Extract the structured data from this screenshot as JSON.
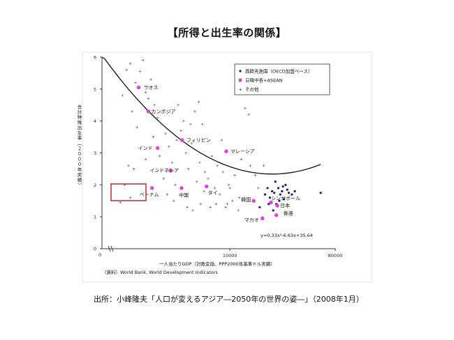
{
  "page": {
    "title": "【所得と出生率の関係】",
    "source": "出所：小峰隆夫「人口が変えるアジア―2050年の世界の姿―」（2008年1月）"
  },
  "chart_data": {
    "type": "scatter",
    "ylabel": "合計特殊出生率（２０００年実績）",
    "xlabel": "一人当たりGDP（対数変換、PPP2000年基準ドル実績）",
    "note": "（資料）World Bank, World Development Indicators",
    "x_scale": "log",
    "x_ticks": [
      {
        "value": 10000,
        "label": "10000"
      },
      {
        "value": 80000,
        "label": "80000"
      }
    ],
    "x_origin_label": "0",
    "y_ticks": [
      0,
      1,
      2,
      3,
      4,
      5,
      6
    ],
    "ylim": [
      0,
      6
    ],
    "xlim": [
      800,
      80000
    ],
    "grid": false,
    "legend_position": "top-right",
    "legend": [
      {
        "label": "西欧先進国（OECD加盟ベース）",
        "marker": "dot",
        "color": "#1a1a6e"
      },
      {
        "label": "日韓中香+ASEAN",
        "marker": "magenta",
        "color": "#e040e0"
      },
      {
        "label": "その他",
        "marker": "plus",
        "color": "#777777"
      }
    ],
    "equation": "y=0.33x²-6.63x+35.64",
    "trend": {
      "a": 0.33,
      "b": -6.63,
      "c": 35.64
    },
    "highlight_box": "ベトナム",
    "series": [
      {
        "name": "日韓中香+ASEAN",
        "points": [
          {
            "label": "ラオス",
            "x": 1650,
            "y": 5.05
          },
          {
            "label": "カンボジア",
            "x": 2000,
            "y": 4.3
          },
          {
            "label": "インド",
            "x": 2400,
            "y": 3.15
          },
          {
            "label": "フィリピン",
            "x": 3900,
            "y": 3.4
          },
          {
            "label": "マレーシア",
            "x": 9300,
            "y": 3.05
          },
          {
            "label": "インドネシア",
            "x": 3100,
            "y": 2.45
          },
          {
            "label": "ベトナム",
            "x": 2150,
            "y": 1.9
          },
          {
            "label": "中国",
            "x": 3850,
            "y": 1.9
          },
          {
            "label": "タイ",
            "x": 6300,
            "y": 1.95
          },
          {
            "label": "韓国",
            "x": 16000,
            "y": 1.5
          },
          {
            "label": "シンガポール",
            "x": 22500,
            "y": 1.45
          },
          {
            "label": "日本",
            "x": 25500,
            "y": 1.35
          },
          {
            "label": "マカオ",
            "x": 19000,
            "y": 0.95
          },
          {
            "label": "香港",
            "x": 25000,
            "y": 1.05
          }
        ]
      },
      {
        "name": "西欧先進国（OECD加盟ベース）",
        "points": [
          {
            "x": 18000,
            "y": 1.3
          },
          {
            "x": 20000,
            "y": 1.7
          },
          {
            "x": 21000,
            "y": 1.9
          },
          {
            "x": 22000,
            "y": 1.6
          },
          {
            "x": 23000,
            "y": 1.8
          },
          {
            "x": 24000,
            "y": 1.75
          },
          {
            "x": 25000,
            "y": 1.4
          },
          {
            "x": 26000,
            "y": 1.9
          },
          {
            "x": 27000,
            "y": 1.7
          },
          {
            "x": 28000,
            "y": 1.8
          },
          {
            "x": 29000,
            "y": 1.55
          },
          {
            "x": 30000,
            "y": 2.0
          },
          {
            "x": 32000,
            "y": 1.75
          },
          {
            "x": 34000,
            "y": 1.7
          },
          {
            "x": 36000,
            "y": 1.8
          },
          {
            "x": 23500,
            "y": 1.2
          },
          {
            "x": 26500,
            "y": 1.5
          },
          {
            "x": 60000,
            "y": 1.75
          },
          {
            "x": 24500,
            "y": 2.1
          },
          {
            "x": 28500,
            "y": 1.95
          },
          {
            "x": 21500,
            "y": 1.4
          },
          {
            "x": 31000,
            "y": 1.85
          }
        ]
      },
      {
        "name": "その他",
        "points": [
          {
            "x": 1300,
            "y": 5.6
          },
          {
            "x": 1400,
            "y": 5.8
          },
          {
            "x": 1550,
            "y": 5.2
          },
          {
            "x": 1700,
            "y": 5.55
          },
          {
            "x": 1800,
            "y": 5.9
          },
          {
            "x": 1900,
            "y": 4.9
          },
          {
            "x": 2000,
            "y": 4.7
          },
          {
            "x": 2100,
            "y": 5.3
          },
          {
            "x": 2250,
            "y": 4.5
          },
          {
            "x": 2400,
            "y": 4.1
          },
          {
            "x": 2600,
            "y": 3.9
          },
          {
            "x": 2800,
            "y": 3.6
          },
          {
            "x": 1200,
            "y": 4.8
          },
          {
            "x": 1450,
            "y": 4.3
          },
          {
            "x": 1600,
            "y": 3.8
          },
          {
            "x": 1350,
            "y": 2.6
          },
          {
            "x": 1500,
            "y": 2.5
          },
          {
            "x": 1250,
            "y": 2.0
          },
          {
            "x": 1400,
            "y": 1.6
          },
          {
            "x": 1150,
            "y": 1.45
          },
          {
            "x": 1900,
            "y": 2.8
          },
          {
            "x": 2200,
            "y": 3.5
          },
          {
            "x": 2500,
            "y": 2.9
          },
          {
            "x": 2700,
            "y": 2.2
          },
          {
            "x": 3000,
            "y": 3.2
          },
          {
            "x": 3200,
            "y": 2.7
          },
          {
            "x": 3400,
            "y": 2.0
          },
          {
            "x": 3600,
            "y": 4.5
          },
          {
            "x": 3800,
            "y": 3.7
          },
          {
            "x": 4000,
            "y": 4.0
          },
          {
            "x": 4200,
            "y": 3.0
          },
          {
            "x": 4400,
            "y": 2.5
          },
          {
            "x": 4700,
            "y": 3.3
          },
          {
            "x": 5000,
            "y": 4.3
          },
          {
            "x": 5200,
            "y": 2.1
          },
          {
            "x": 5500,
            "y": 2.7
          },
          {
            "x": 5800,
            "y": 3.9
          },
          {
            "x": 6100,
            "y": 2.4
          },
          {
            "x": 6500,
            "y": 2.2
          },
          {
            "x": 7000,
            "y": 2.9
          },
          {
            "x": 7400,
            "y": 1.9
          },
          {
            "x": 7800,
            "y": 2.6
          },
          {
            "x": 8200,
            "y": 1.7
          },
          {
            "x": 8700,
            "y": 2.4
          },
          {
            "x": 9200,
            "y": 1.3
          },
          {
            "x": 9800,
            "y": 2.0
          },
          {
            "x": 10500,
            "y": 1.5
          },
          {
            "x": 11000,
            "y": 2.3
          },
          {
            "x": 11800,
            "y": 1.2
          },
          {
            "x": 12500,
            "y": 2.8
          },
          {
            "x": 13500,
            "y": 4.4
          },
          {
            "x": 14500,
            "y": 4.2
          },
          {
            "x": 15000,
            "y": 2.6
          },
          {
            "x": 16500,
            "y": 2.3
          },
          {
            "x": 17500,
            "y": 1.9
          },
          {
            "x": 19500,
            "y": 2.6
          },
          {
            "x": 4800,
            "y": 1.2
          },
          {
            "x": 4300,
            "y": 1.3
          },
          {
            "x": 5600,
            "y": 1.4
          },
          {
            "x": 6800,
            "y": 1.3
          },
          {
            "x": 7600,
            "y": 1.4
          },
          {
            "x": 3300,
            "y": 1.5
          },
          {
            "x": 2900,
            "y": 1.7
          },
          {
            "x": 8500,
            "y": 3.4
          },
          {
            "x": 6000,
            "y": 1.8
          },
          {
            "x": 9500,
            "y": 1.4
          },
          {
            "x": 5400,
            "y": 4.6
          },
          {
            "x": 4600,
            "y": 3.9
          },
          {
            "x": 3500,
            "y": 3.4
          },
          {
            "x": 12000,
            "y": 1.6
          },
          {
            "x": 10000,
            "y": 1.9
          }
        ]
      }
    ]
  }
}
